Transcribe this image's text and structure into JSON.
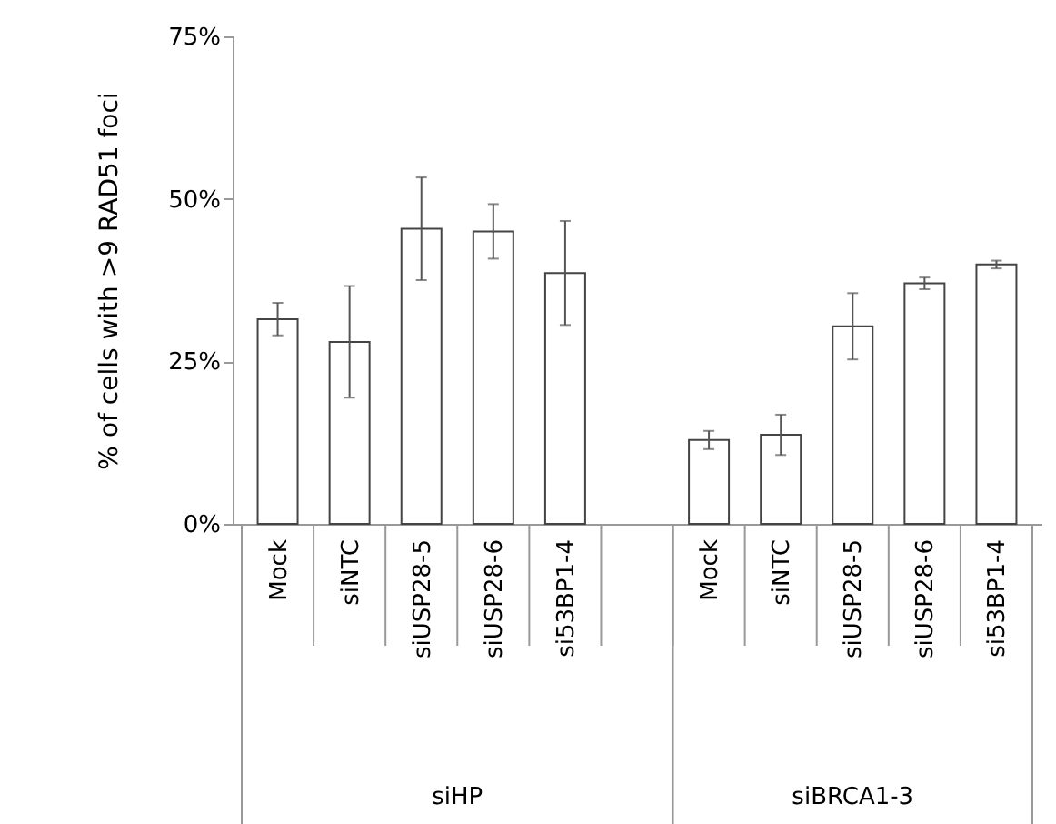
{
  "chart_data": {
    "type": "bar",
    "ylabel": "% of cells with >9 RAD51 foci",
    "categories": [
      "Mock",
      "siNTC",
      "siUSP28-5",
      "siUSP28-6",
      "si53BP1-4",
      null,
      "Mock",
      "siNTC",
      "siUSP28-5",
      "siUSP28-6",
      "si53BP1-4"
    ],
    "values": [
      31.5,
      28,
      45.4,
      45,
      38.6,
      null,
      12.9,
      13.7,
      30.4,
      37,
      39.9
    ],
    "errors": [
      2.5,
      8.6,
      7.9,
      4.2,
      8,
      null,
      1.4,
      3.1,
      5.1,
      0.9,
      0.6
    ],
    "color": "#ffffff",
    "ylim": [
      0,
      75
    ],
    "yticks": [
      {
        "value": 0,
        "label": "0%"
      },
      {
        "value": 25,
        "label": "25%"
      },
      {
        "value": 50,
        "label": "50%"
      },
      {
        "value": 75,
        "label": "75%"
      }
    ],
    "annotations": [
      "siHP",
      "siBRCA1-3"
    ],
    "grid": false
  }
}
